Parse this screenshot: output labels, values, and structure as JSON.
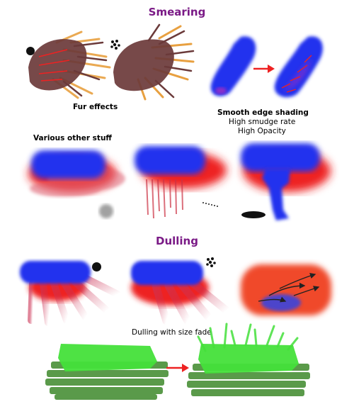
{
  "headings": {
    "smearing": "Smearing",
    "dulling": "Dulling"
  },
  "captions": {
    "fur_effects": "Fur effects",
    "smooth_edge_shading": "Smooth edge shading",
    "high_smudge_rate": "High smudge rate",
    "high_opacity": "High Opacity",
    "various_other_stuff": "Various other stuff",
    "dulling_size_fade": "Dulling with size fade"
  },
  "colors": {
    "heading": "#7a1a86",
    "blue": "#2233ee",
    "red": "#ee2222",
    "orange_red": "#f04a2a",
    "fur_brown": "#6b3a3a",
    "fur_orange": "#e8a040",
    "green_light": "#44e03a",
    "green_dark": "#5a9a4a",
    "arrow": "#ee2222"
  },
  "icons": [
    "brush-dot-icon",
    "spray-brush-icon",
    "arrow-icon"
  ]
}
